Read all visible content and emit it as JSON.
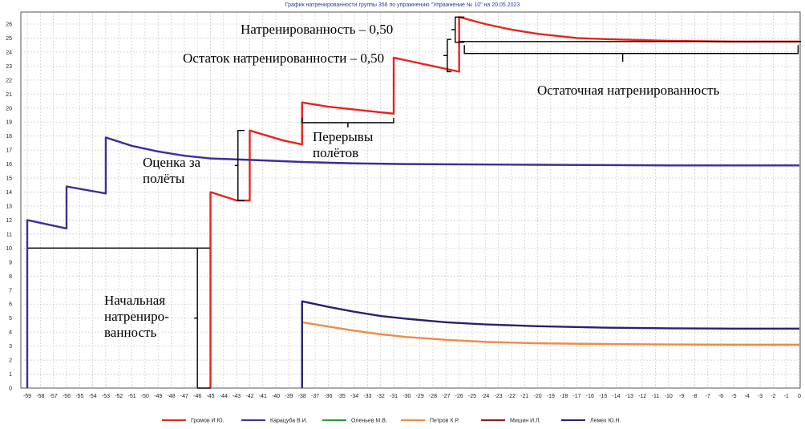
{
  "chart_data": {
    "type": "line",
    "title": "График натренированности группы 356 по упражнению \"Упражнение № 10\" на 20.05.2023",
    "xlabel": "",
    "ylabel": "",
    "xlim": [
      -59,
      0
    ],
    "ylim": [
      0,
      26
    ],
    "grid": true,
    "legend_position": "bottom",
    "x_ticks": [
      "-59",
      "-58",
      "-57",
      "-56",
      "-55",
      "-54",
      "-53",
      "-52",
      "-51",
      "-50",
      "-49",
      "-48",
      "-47",
      "-46",
      "-45",
      "-44",
      "-43",
      "-42",
      "-41",
      "-40",
      "-39",
      "-38",
      "-37",
      "-36",
      "-35",
      "-34",
      "-33",
      "-32",
      "-31",
      "-30",
      "-29",
      "-28",
      "-27",
      "-26",
      "-25",
      "-24",
      "-23",
      "-22",
      "-21",
      "-20",
      "-19",
      "-18",
      "-17",
      "-16",
      "-15",
      "-14",
      "-13",
      "-12",
      "-11",
      "-10",
      "-9",
      "-8",
      "-7",
      "-6",
      "-5",
      "-4",
      "-3",
      "-2",
      "-1",
      "0"
    ],
    "y_ticks": [
      "0",
      "1",
      "2",
      "3",
      "4",
      "5",
      "6",
      "7",
      "8",
      "9",
      "10",
      "11",
      "12",
      "13",
      "14",
      "15",
      "16",
      "17",
      "18",
      "19",
      "20",
      "21",
      "22",
      "23",
      "24",
      "25",
      "26"
    ],
    "series": [
      {
        "name": "Громов И.Ю.",
        "color": "#e8231e",
        "points": [
          [
            -45,
            0
          ],
          [
            -45,
            14.0
          ],
          [
            -43,
            13.4
          ],
          [
            -43,
            13.4
          ],
          [
            -42,
            13.4
          ],
          [
            -42,
            18.4
          ],
          [
            -39.5,
            17.7
          ],
          [
            -38,
            17.4
          ],
          [
            -38,
            20.4
          ],
          [
            -36,
            20.1
          ],
          [
            -34,
            19.9
          ],
          [
            -32,
            19.7
          ],
          [
            -31,
            19.6
          ],
          [
            -31,
            23.6
          ],
          [
            -29,
            23.2
          ],
          [
            -27,
            22.8
          ],
          [
            -26,
            22.6
          ],
          [
            -26,
            26.5
          ],
          [
            -24,
            26.0
          ],
          [
            -22,
            25.6
          ],
          [
            -20,
            25.3
          ],
          [
            -17,
            25.0
          ],
          [
            -14,
            24.9
          ],
          [
            -10,
            24.8
          ],
          [
            -5,
            24.75
          ],
          [
            0,
            24.75
          ]
        ]
      },
      {
        "name": "Карацуба В.И.",
        "color": "#3a2f9a",
        "points": [
          [
            -59,
            0
          ],
          [
            -59,
            12.0
          ],
          [
            -56,
            11.4
          ],
          [
            -56,
            14.4
          ],
          [
            -53,
            13.9
          ],
          [
            -53,
            17.9
          ],
          [
            -51,
            17.3
          ],
          [
            -49,
            16.9
          ],
          [
            -47,
            16.6
          ],
          [
            -45,
            16.4
          ],
          [
            -42,
            16.3
          ],
          [
            -38,
            16.15
          ],
          [
            -34,
            16.05
          ],
          [
            -30,
            16.0
          ],
          [
            -20,
            15.95
          ],
          [
            -10,
            15.9
          ],
          [
            0,
            15.9
          ]
        ]
      },
      {
        "name": "Оленьев М.В.",
        "color": "#2a9a3a",
        "points": []
      },
      {
        "name": "Петров К.Р.",
        "color": "#f08a45",
        "points": [
          [
            -38,
            4.7
          ],
          [
            -36,
            4.4
          ],
          [
            -34,
            4.1
          ],
          [
            -32,
            3.85
          ],
          [
            -30,
            3.65
          ],
          [
            -27,
            3.45
          ],
          [
            -24,
            3.3
          ],
          [
            -20,
            3.2
          ],
          [
            -15,
            3.15
          ],
          [
            -10,
            3.12
          ],
          [
            -5,
            3.1
          ],
          [
            0,
            3.1
          ]
        ]
      },
      {
        "name": "Мишин И.Л.",
        "color": "#8a1a1a",
        "points": []
      },
      {
        "name": "Лемех Ю.Н.",
        "color": "#26236b",
        "points": [
          [
            -38,
            0
          ],
          [
            -38,
            6.2
          ],
          [
            -36,
            5.8
          ],
          [
            -34,
            5.45
          ],
          [
            -32,
            5.15
          ],
          [
            -30,
            4.95
          ],
          [
            -27,
            4.7
          ],
          [
            -24,
            4.55
          ],
          [
            -20,
            4.42
          ],
          [
            -15,
            4.32
          ],
          [
            -10,
            4.27
          ],
          [
            -5,
            4.25
          ],
          [
            0,
            4.25
          ]
        ]
      }
    ],
    "annotations": {
      "initial": "Начальная натренированность",
      "initial_lines": [
        "Начальная",
        "натрениро-",
        "ванность"
      ],
      "flight_score": "Оценка за полёты",
      "flight_score_lines": [
        "Оценка за",
        "полёты"
      ],
      "breaks": "Перерывы полётов",
      "breaks_lines": [
        "Перерывы",
        "полётов"
      ],
      "training_label": "Натренированность – 0,50",
      "remainder_label": "Остаток натренированности – 0,50",
      "residual_label": "Остаточная натренированность"
    }
  }
}
